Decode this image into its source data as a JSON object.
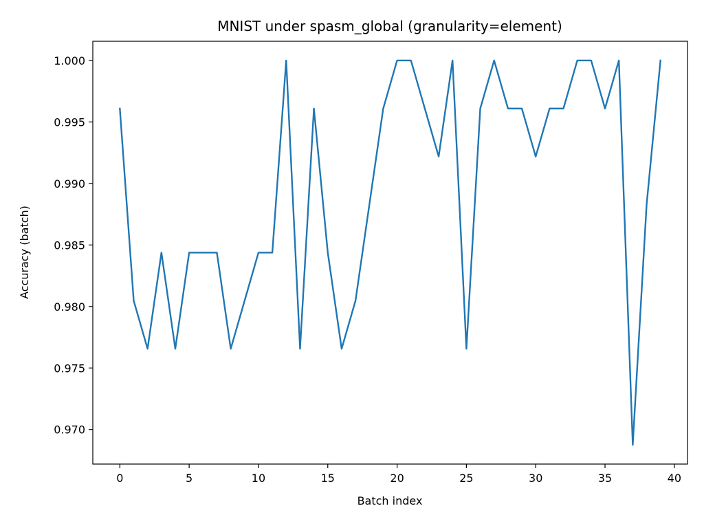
{
  "chart_data": {
    "type": "line",
    "title": "MNIST under spasm_global (granularity=element)",
    "xlabel": "Batch index",
    "ylabel": "Accuracy (batch)",
    "xlim": [
      -1.95,
      40.95
    ],
    "ylim": [
      0.96719,
      1.00156
    ],
    "x_ticks": [
      0,
      5,
      10,
      15,
      20,
      25,
      30,
      35,
      40
    ],
    "x_tick_labels": [
      "0",
      "5",
      "10",
      "15",
      "20",
      "25",
      "30",
      "35",
      "40"
    ],
    "y_ticks": [
      0.97,
      0.975,
      0.98,
      0.985,
      0.99,
      0.995,
      1.0
    ],
    "y_tick_labels": [
      "0.970",
      "0.975",
      "0.980",
      "0.985",
      "0.990",
      "0.995",
      "1.000"
    ],
    "grid": false,
    "series": [
      {
        "color": "#1f77b4",
        "x": [
          0,
          1,
          2,
          3,
          4,
          5,
          6,
          7,
          8,
          9,
          10,
          11,
          12,
          13,
          14,
          15,
          16,
          17,
          18,
          19,
          20,
          21,
          22,
          23,
          24,
          25,
          26,
          27,
          28,
          29,
          30,
          31,
          32,
          33,
          34,
          35,
          36,
          37,
          38,
          39
        ],
        "values": [
          0.99609,
          0.98047,
          0.97656,
          0.98438,
          0.97656,
          0.98438,
          0.98438,
          0.98438,
          0.97656,
          0.98047,
          0.98438,
          0.98438,
          1.0,
          0.97656,
          0.99609,
          0.98438,
          0.97656,
          0.98047,
          0.98828,
          0.99609,
          1.0,
          1.0,
          0.99609,
          0.99219,
          1.0,
          0.97656,
          0.99609,
          1.0,
          0.99609,
          0.99609,
          0.99219,
          0.99609,
          0.99609,
          1.0,
          1.0,
          0.99609,
          1.0,
          0.96875,
          0.98828,
          1.0
        ]
      }
    ]
  }
}
